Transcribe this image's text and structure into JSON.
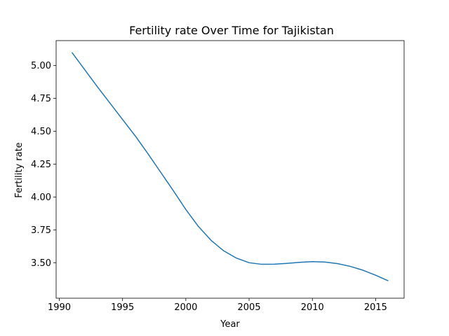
{
  "chart_data": {
    "type": "line",
    "title": "Fertility rate Over Time for Tajikistan",
    "xlabel": "Year",
    "ylabel": "Fertility rate",
    "xlim": [
      1989.75,
      2017.25
    ],
    "ylim": [
      3.23,
      5.19
    ],
    "xticks": [
      1990,
      1995,
      2000,
      2005,
      2010,
      2015
    ],
    "yticks": [
      3.5,
      3.75,
      4.0,
      4.25,
      4.5,
      4.75,
      5.0
    ],
    "ytick_labels": [
      "3.50",
      "3.75",
      "4.00",
      "4.25",
      "4.50",
      "4.75",
      "5.00"
    ],
    "grid": false,
    "line_color": "#1f77b4",
    "series": [
      {
        "x": [
          1991,
          1992,
          1993,
          1994,
          1995,
          1996,
          1997,
          1998,
          1999,
          2000,
          2001,
          2002,
          2003,
          2004,
          2005,
          2006,
          2007,
          2008,
          2009,
          2010,
          2011,
          2012,
          2013,
          2014,
          2015,
          2016
        ],
        "values": [
          5.1,
          4.97,
          4.84,
          4.715,
          4.59,
          4.465,
          4.33,
          4.19,
          4.05,
          3.905,
          3.775,
          3.67,
          3.59,
          3.535,
          3.5,
          3.488,
          3.489,
          3.495,
          3.503,
          3.508,
          3.505,
          3.493,
          3.472,
          3.443,
          3.405,
          3.362
        ]
      }
    ]
  }
}
